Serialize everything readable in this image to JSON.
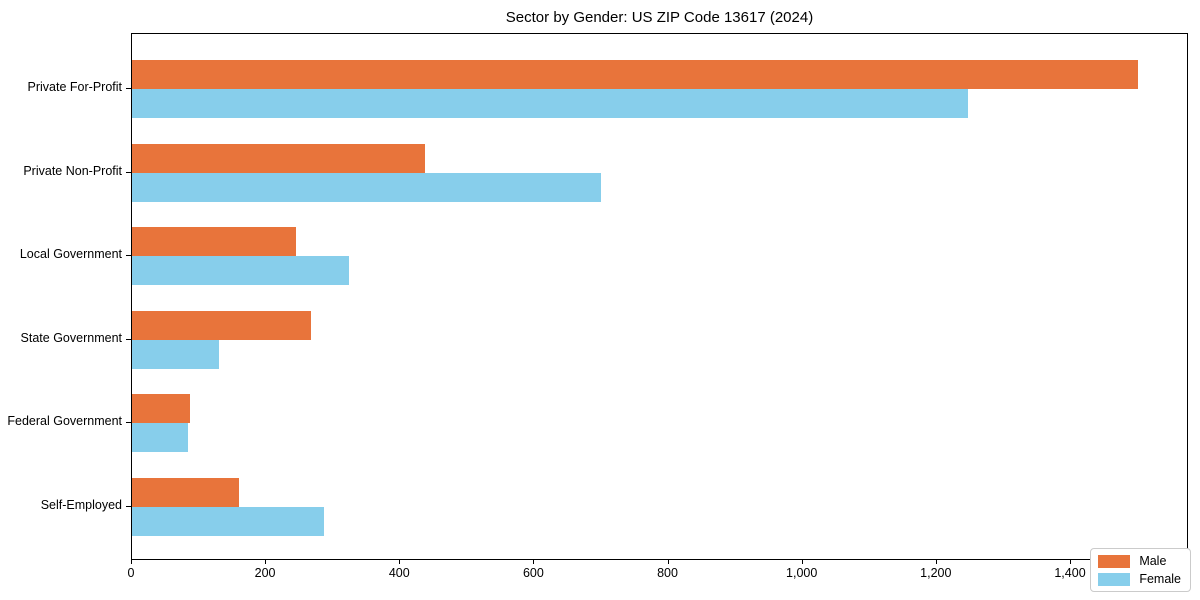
{
  "title": "Sector by Gender: US ZIP Code 13617 (2024)",
  "colors": {
    "male": "#E8743B",
    "female": "#87CEEB",
    "spine": "#000000",
    "background": "#ffffff",
    "legend_border": "#cbcbcb"
  },
  "chart_data": {
    "type": "bar",
    "orientation": "horizontal",
    "title": "Sector by Gender: US ZIP Code 13617 (2024)",
    "categories": [
      "Private For-Profit",
      "Private Non-Profit",
      "Local Government",
      "State Government",
      "Federal Government",
      "Self-Employed"
    ],
    "series": [
      {
        "name": "Male",
        "color": "#E8743B",
        "values": [
          1500,
          437,
          245,
          267,
          87,
          160
        ]
      },
      {
        "name": "Female",
        "color": "#87CEEB",
        "values": [
          1247,
          699,
          324,
          130,
          83,
          286
        ]
      }
    ],
    "xlabel": "",
    "ylabel": "",
    "xlim": [
      0,
      1576
    ],
    "xticks": [
      0,
      200,
      400,
      600,
      800,
      1000,
      1200,
      1400
    ],
    "xtick_labels": [
      "0",
      "200",
      "400",
      "600",
      "800",
      "1,000",
      "1,200",
      "1,400"
    ],
    "grid": false,
    "legend_position": "lower right"
  },
  "legend": {
    "items": [
      {
        "label": "Male"
      },
      {
        "label": "Female"
      }
    ]
  }
}
